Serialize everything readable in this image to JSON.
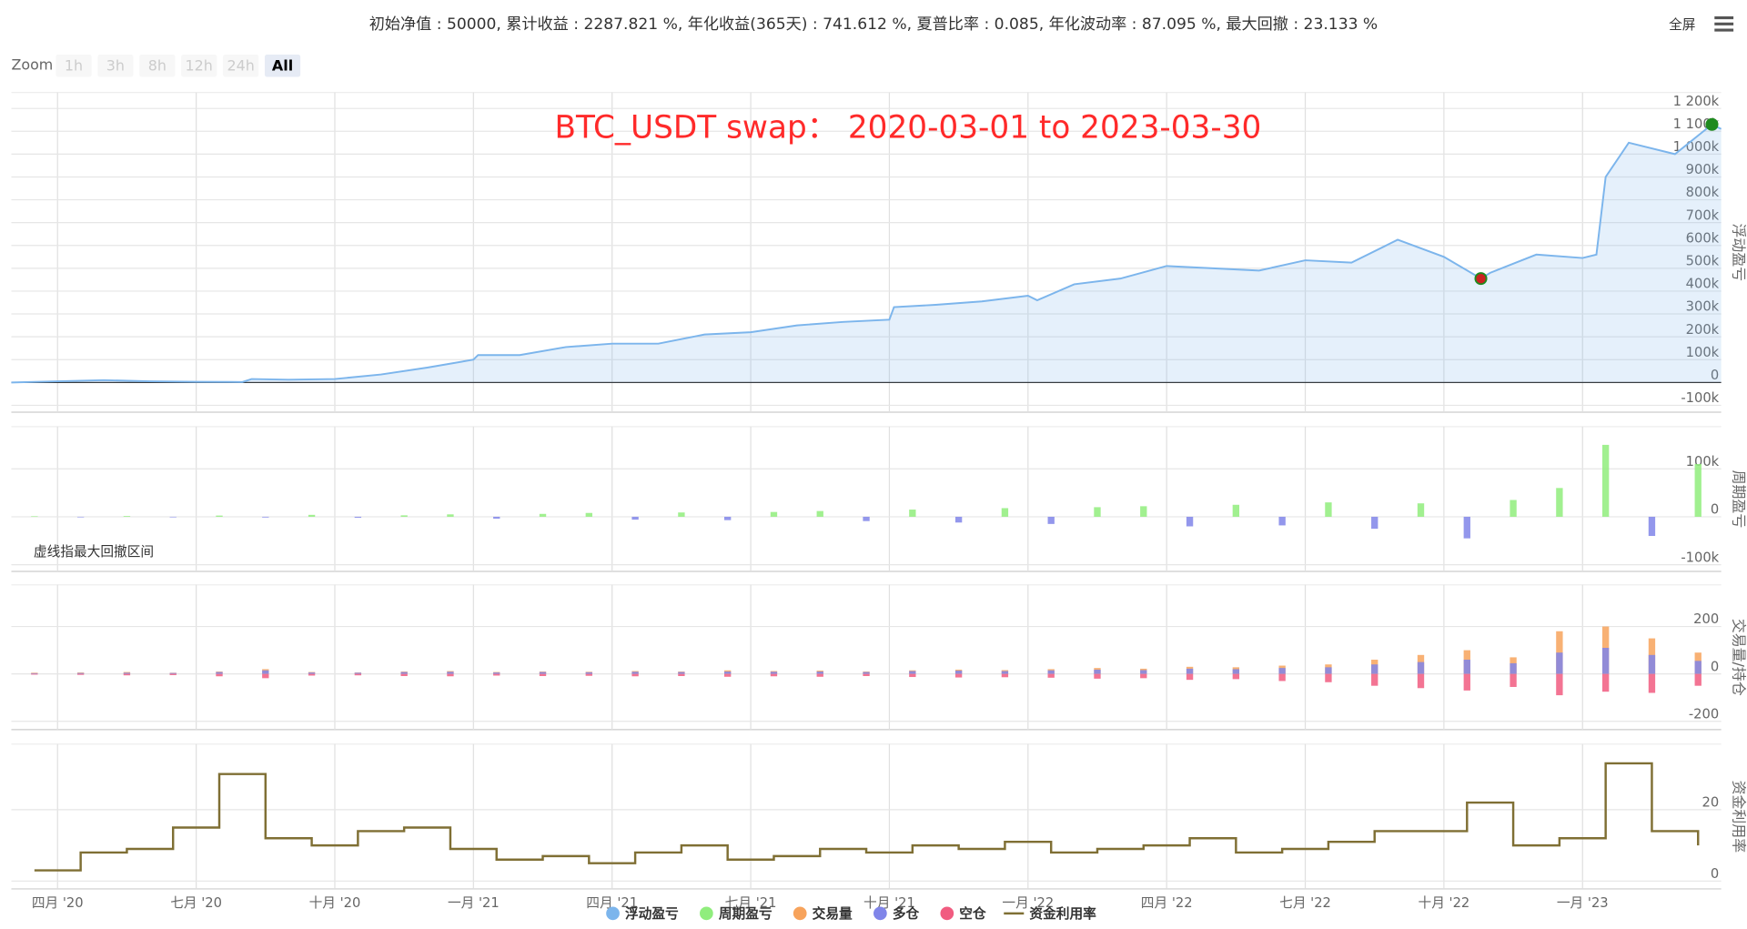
{
  "summary": "初始净值 : 50000, 累计收益 : 2287.821 %, 年化收益(365天) : 741.612 %, 夏普比率 : 0.085, 年化波动率 : 87.095 %, 最大回撤 : 23.133 %",
  "fullscreen": "全屏",
  "zoom": {
    "label": "Zoom",
    "buttons": [
      "1h",
      "3h",
      "8h",
      "12h",
      "24h",
      "All"
    ],
    "selected": 5
  },
  "x_axis": {
    "xlim": [
      0,
      37
    ],
    "xticks": [
      {
        "value": 1,
        "label": "四月 '20"
      },
      {
        "value": 4,
        "label": "七月 '20"
      },
      {
        "value": 7,
        "label": "十月 '20"
      },
      {
        "value": 10,
        "label": "一月 '21"
      },
      {
        "value": 13,
        "label": "四月 '21"
      },
      {
        "value": 16,
        "label": "七月 '21"
      },
      {
        "value": 19,
        "label": "十月 '21"
      },
      {
        "value": 22,
        "label": "一月 '22"
      },
      {
        "value": 25,
        "label": "四月 '22"
      },
      {
        "value": 28,
        "label": "七月 '22"
      },
      {
        "value": 31,
        "label": "十月 '22"
      },
      {
        "value": 34,
        "label": "一月 '23"
      }
    ],
    "x": [
      0.5,
      1.5,
      2.5,
      3.5,
      4.5,
      5.5,
      6.5,
      7.5,
      8.5,
      9.5,
      10.5,
      11.5,
      12.5,
      13.5,
      14.5,
      15.5,
      16.5,
      17.5,
      18.5,
      19.5,
      20.5,
      21.5,
      22.5,
      23.5,
      24.5,
      25.5,
      26.5,
      27.5,
      28.5,
      29.5,
      30.5,
      31.5,
      32.5,
      33.5,
      34.5,
      35.5,
      36.5
    ]
  },
  "chart_data": [
    {
      "type": "line",
      "annotation": "BTC_USDT swap： 2020-03-01 to 2023-03-30",
      "annotation_color": "#ff2a2a",
      "ylabel": "浮动盈亏",
      "ylim": [
        -130000,
        1270000
      ],
      "yticks": [
        {
          "value": -100000,
          "label": "-100k"
        },
        0,
        {
          "value": 100000,
          "label": "100k"
        },
        {
          "value": 200000,
          "label": "200k"
        },
        {
          "value": 300000,
          "label": "300k"
        },
        {
          "value": 400000,
          "label": "400k"
        },
        {
          "value": 500000,
          "label": "500k"
        },
        {
          "value": 600000,
          "label": "600k"
        },
        {
          "value": 700000,
          "label": "700k"
        },
        {
          "value": 800000,
          "label": "800k"
        },
        {
          "value": 900000,
          "label": "900k"
        },
        {
          "value": 1000000,
          "label": "1 000k"
        },
        {
          "value": 1100000,
          "label": "1 100k"
        },
        {
          "value": 1200000,
          "label": "1 200k"
        }
      ],
      "grid": true,
      "area": true,
      "series": [
        {
          "name": "浮动盈亏",
          "color": "#7cb5ec",
          "x": [
            0,
            1,
            2,
            3,
            4,
            5,
            5.2,
            6,
            7,
            8,
            9,
            10,
            10.1,
            11,
            12,
            13,
            14,
            15,
            16,
            17,
            18,
            19,
            19.1,
            20,
            21,
            22,
            22.2,
            23,
            24,
            25,
            26,
            27,
            28,
            29,
            30,
            31,
            31.8,
            32,
            33,
            34,
            34.3,
            34.5,
            35,
            36,
            36.8,
            37
          ],
          "values": [
            0,
            5000,
            10000,
            5000,
            3000,
            2000,
            15000,
            12000,
            15000,
            35000,
            65000,
            100000,
            120000,
            120000,
            155000,
            170000,
            170000,
            210000,
            220000,
            250000,
            265000,
            275000,
            330000,
            340000,
            355000,
            380000,
            360000,
            430000,
            455000,
            510000,
            500000,
            490000,
            535000,
            525000,
            625000,
            550000,
            455000,
            480000,
            560000,
            545000,
            560000,
            900000,
            1050000,
            1000000,
            1130000,
            1110000
          ]
        }
      ],
      "markers": [
        {
          "x": 31.8,
          "y": 455000,
          "color": "#cc2222"
        },
        {
          "x": 36.8,
          "y": 1130000,
          "color": "#1f8a1f"
        }
      ]
    },
    {
      "type": "bar",
      "ylabel": "周期盈亏",
      "note": "虚线指最大回撤区间",
      "ylim": [
        -114000,
        188000
      ],
      "yticks": [
        {
          "value": -100000,
          "label": "-100k"
        },
        0,
        {
          "value": 100000,
          "label": "100k"
        }
      ],
      "grid": true,
      "series": [
        {
          "name": "周期盈亏",
          "color": "#90ed7d",
          "negative_color": "#8085e9",
          "values": [
            1000,
            -800,
            1500,
            -1000,
            2500,
            -1500,
            4000,
            -2000,
            3000,
            5000,
            -4000,
            6000,
            8000,
            -6000,
            9000,
            -7000,
            10000,
            12000,
            -9000,
            15000,
            -12000,
            18000,
            -15000,
            20000,
            22000,
            -20000,
            25000,
            -18000,
            30000,
            -25000,
            28000,
            -45000,
            35000,
            60000,
            150000,
            -40000,
            110000
          ]
        }
      ]
    },
    {
      "type": "bar",
      "ylabel": "交易量/持仓",
      "ylim": [
        -235,
        376
      ],
      "yticks": [
        -200,
        0,
        200
      ],
      "grid": true,
      "series": [
        {
          "name": "交易量",
          "color": "#f7a35c",
          "values": [
            5,
            6,
            8,
            5,
            10,
            20,
            8,
            6,
            10,
            12,
            8,
            10,
            9,
            12,
            10,
            15,
            12,
            14,
            10,
            15,
            18,
            16,
            20,
            25,
            22,
            30,
            28,
            35,
            40,
            60,
            80,
            100,
            70,
            180,
            200,
            150,
            90
          ]
        },
        {
          "name": "多仓",
          "color": "#8085e9",
          "values": [
            3,
            4,
            5,
            4,
            8,
            15,
            6,
            5,
            8,
            9,
            6,
            8,
            7,
            9,
            8,
            10,
            9,
            10,
            8,
            12,
            14,
            12,
            15,
            18,
            16,
            22,
            20,
            25,
            28,
            40,
            50,
            60,
            45,
            90,
            110,
            80,
            55
          ]
        },
        {
          "name": "空仓",
          "color": "#f15c80",
          "values": [
            -3,
            -4,
            -6,
            -5,
            -10,
            -18,
            -7,
            -6,
            -9,
            -10,
            -7,
            -9,
            -8,
            -10,
            -9,
            -12,
            -10,
            -12,
            -9,
            -13,
            -15,
            -14,
            -16,
            -20,
            -18,
            -25,
            -22,
            -30,
            -35,
            -50,
            -60,
            -70,
            -55,
            -90,
            -75,
            -80,
            -50
          ]
        }
      ]
    },
    {
      "type": "line",
      "step": true,
      "ylabel": "资金利用率",
      "ylim": [
        -2.2,
        38.4
      ],
      "yticks": [
        0,
        20
      ],
      "grid": true,
      "series": [
        {
          "name": "资金利用率",
          "color": "#7f6f34",
          "values": [
            3,
            8,
            9,
            15,
            30,
            12,
            10,
            14,
            15,
            9,
            6,
            7,
            5,
            8,
            10,
            6,
            7,
            9,
            8,
            10,
            9,
            11,
            8,
            9,
            10,
            12,
            8,
            9,
            11,
            14,
            14,
            22,
            10,
            12,
            33,
            14,
            10
          ]
        }
      ]
    }
  ]
}
